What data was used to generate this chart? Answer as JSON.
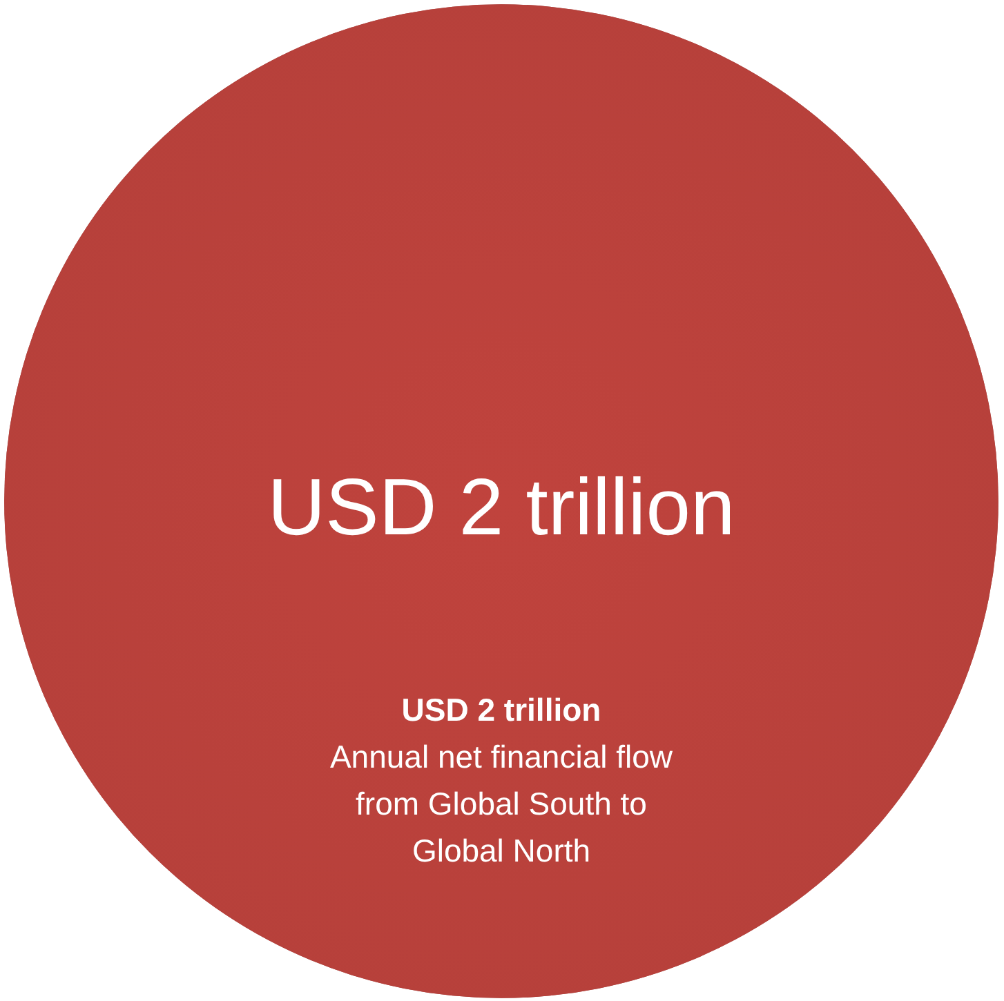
{
  "chart_data": {
    "type": "other",
    "categories": [
      null
    ],
    "values": [
      2
    ],
    "value_labels": [
      "USD 2 trillion"
    ],
    "colors": [
      "#c0433d"
    ],
    "annotations": [
      "USD 2 trillion",
      "Annual net financial flow from Global South to Global North"
    ]
  }
}
